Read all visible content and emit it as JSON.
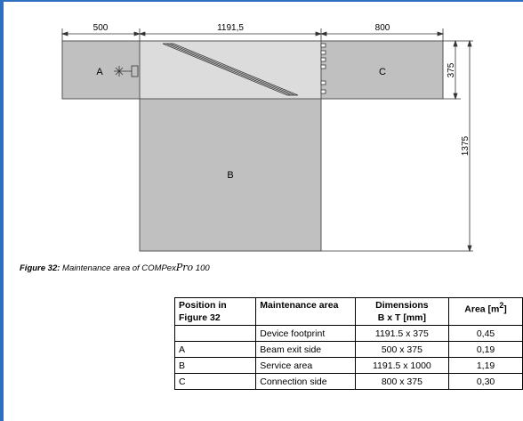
{
  "drawing": {
    "dimensions": {
      "width_a": "500",
      "width_device": "1191,5",
      "width_c": "800",
      "height_top": "375",
      "height_total": "1375"
    },
    "areas": {
      "a": "A",
      "b": "B",
      "c": "C"
    }
  },
  "caption": {
    "figure": "Figure 32:",
    "text": "Maintenance area of COMPex",
    "product_script": "Pro",
    "product_number": "100"
  },
  "table": {
    "headers": {
      "position_line1": "Position in",
      "position_line2": "Figure 32",
      "maintenance_area": "Maintenance area",
      "dimensions_line1": "Dimensions",
      "dimensions_line2": "B x T [mm]",
      "area": "Area [m",
      "area_sup": "2",
      "area_close": "]"
    },
    "rows": [
      {
        "position": "",
        "name": "Device footprint",
        "dimensions": "1191.5 x 375",
        "area": "0,45"
      },
      {
        "position": "A",
        "name": "Beam exit side",
        "dimensions": "500 x 375",
        "area": "0,19"
      },
      {
        "position": "B",
        "name": "Service area",
        "dimensions": "1191.5 x 1000",
        "area": "1,19"
      },
      {
        "position": "C",
        "name": "Connection side",
        "dimensions": "800 x 375",
        "area": "0,30"
      }
    ]
  }
}
